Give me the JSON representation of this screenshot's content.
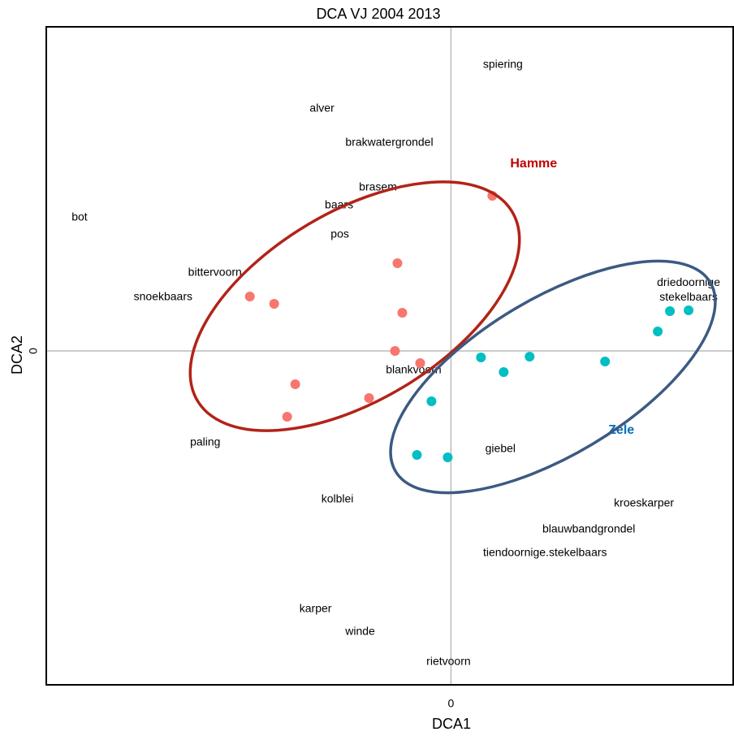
{
  "chart_data": {
    "type": "scatter",
    "title": "DCA VJ 2004 2013",
    "x_label": "DCA1",
    "y_label": "DCA2",
    "xlim": [
      -4.99,
      3.48
    ],
    "ylim": [
      -4.11,
      3.99
    ],
    "xticks": [
      0
    ],
    "yticks": [
      0
    ],
    "grid": "zero-lines",
    "series": [
      {
        "name": "Hamme",
        "color": "#f8766d",
        "label_color": "#c00000",
        "x": [
          0.51,
          -0.66,
          -2.48,
          -2.18,
          -0.6,
          -0.69,
          -0.38,
          -1.92,
          -1.01,
          -2.02
        ],
        "values": [
          1.91,
          1.08,
          0.67,
          0.58,
          0.47,
          0.0,
          -0.15,
          -0.41,
          -0.58,
          -0.81
        ],
        "label_x": 1.02,
        "label_y": 2.3
      },
      {
        "name": "Zele",
        "color": "#00bfc4",
        "label_color": "#0070c0",
        "x": [
          2.7,
          2.93,
          2.55,
          0.37,
          0.97,
          0.65,
          1.9,
          -0.24,
          -0.42,
          -0.04
        ],
        "values": [
          0.49,
          0.5,
          0.24,
          -0.08,
          -0.07,
          -0.26,
          -0.13,
          -0.62,
          -1.28,
          -1.31
        ],
        "label_x": 2.1,
        "label_y": -0.98
      }
    ],
    "species": {
      "labels": [
        "spiering",
        "alver",
        "brakwatergrondel",
        "brasem",
        "baars",
        "bot",
        "pos",
        "bittervoorn",
        "snoekbaars",
        "driedoornige stekelbaars",
        "blankvoorn",
        "paling",
        "giebel",
        "kolblei",
        "kroeskarper",
        "blauwbandgrondel",
        "tiendoornige.stekelbaars",
        "karper",
        "winde",
        "rietvoorn"
      ],
      "x": [
        0.64,
        -1.59,
        -0.76,
        -0.9,
        -1.38,
        -4.58,
        -1.37,
        -2.91,
        -3.55,
        2.93,
        -0.46,
        -3.03,
        0.61,
        -1.4,
        2.38,
        1.7,
        1.16,
        -1.67,
        -1.12,
        -0.03
      ],
      "y": [
        3.52,
        2.98,
        2.56,
        2.01,
        1.79,
        1.64,
        1.43,
        0.96,
        0.66,
        0.75,
        -0.24,
        -1.13,
        -1.21,
        -1.83,
        -1.88,
        -2.2,
        -2.49,
        -3.18,
        -3.46,
        -3.83
      ]
    }
  }
}
